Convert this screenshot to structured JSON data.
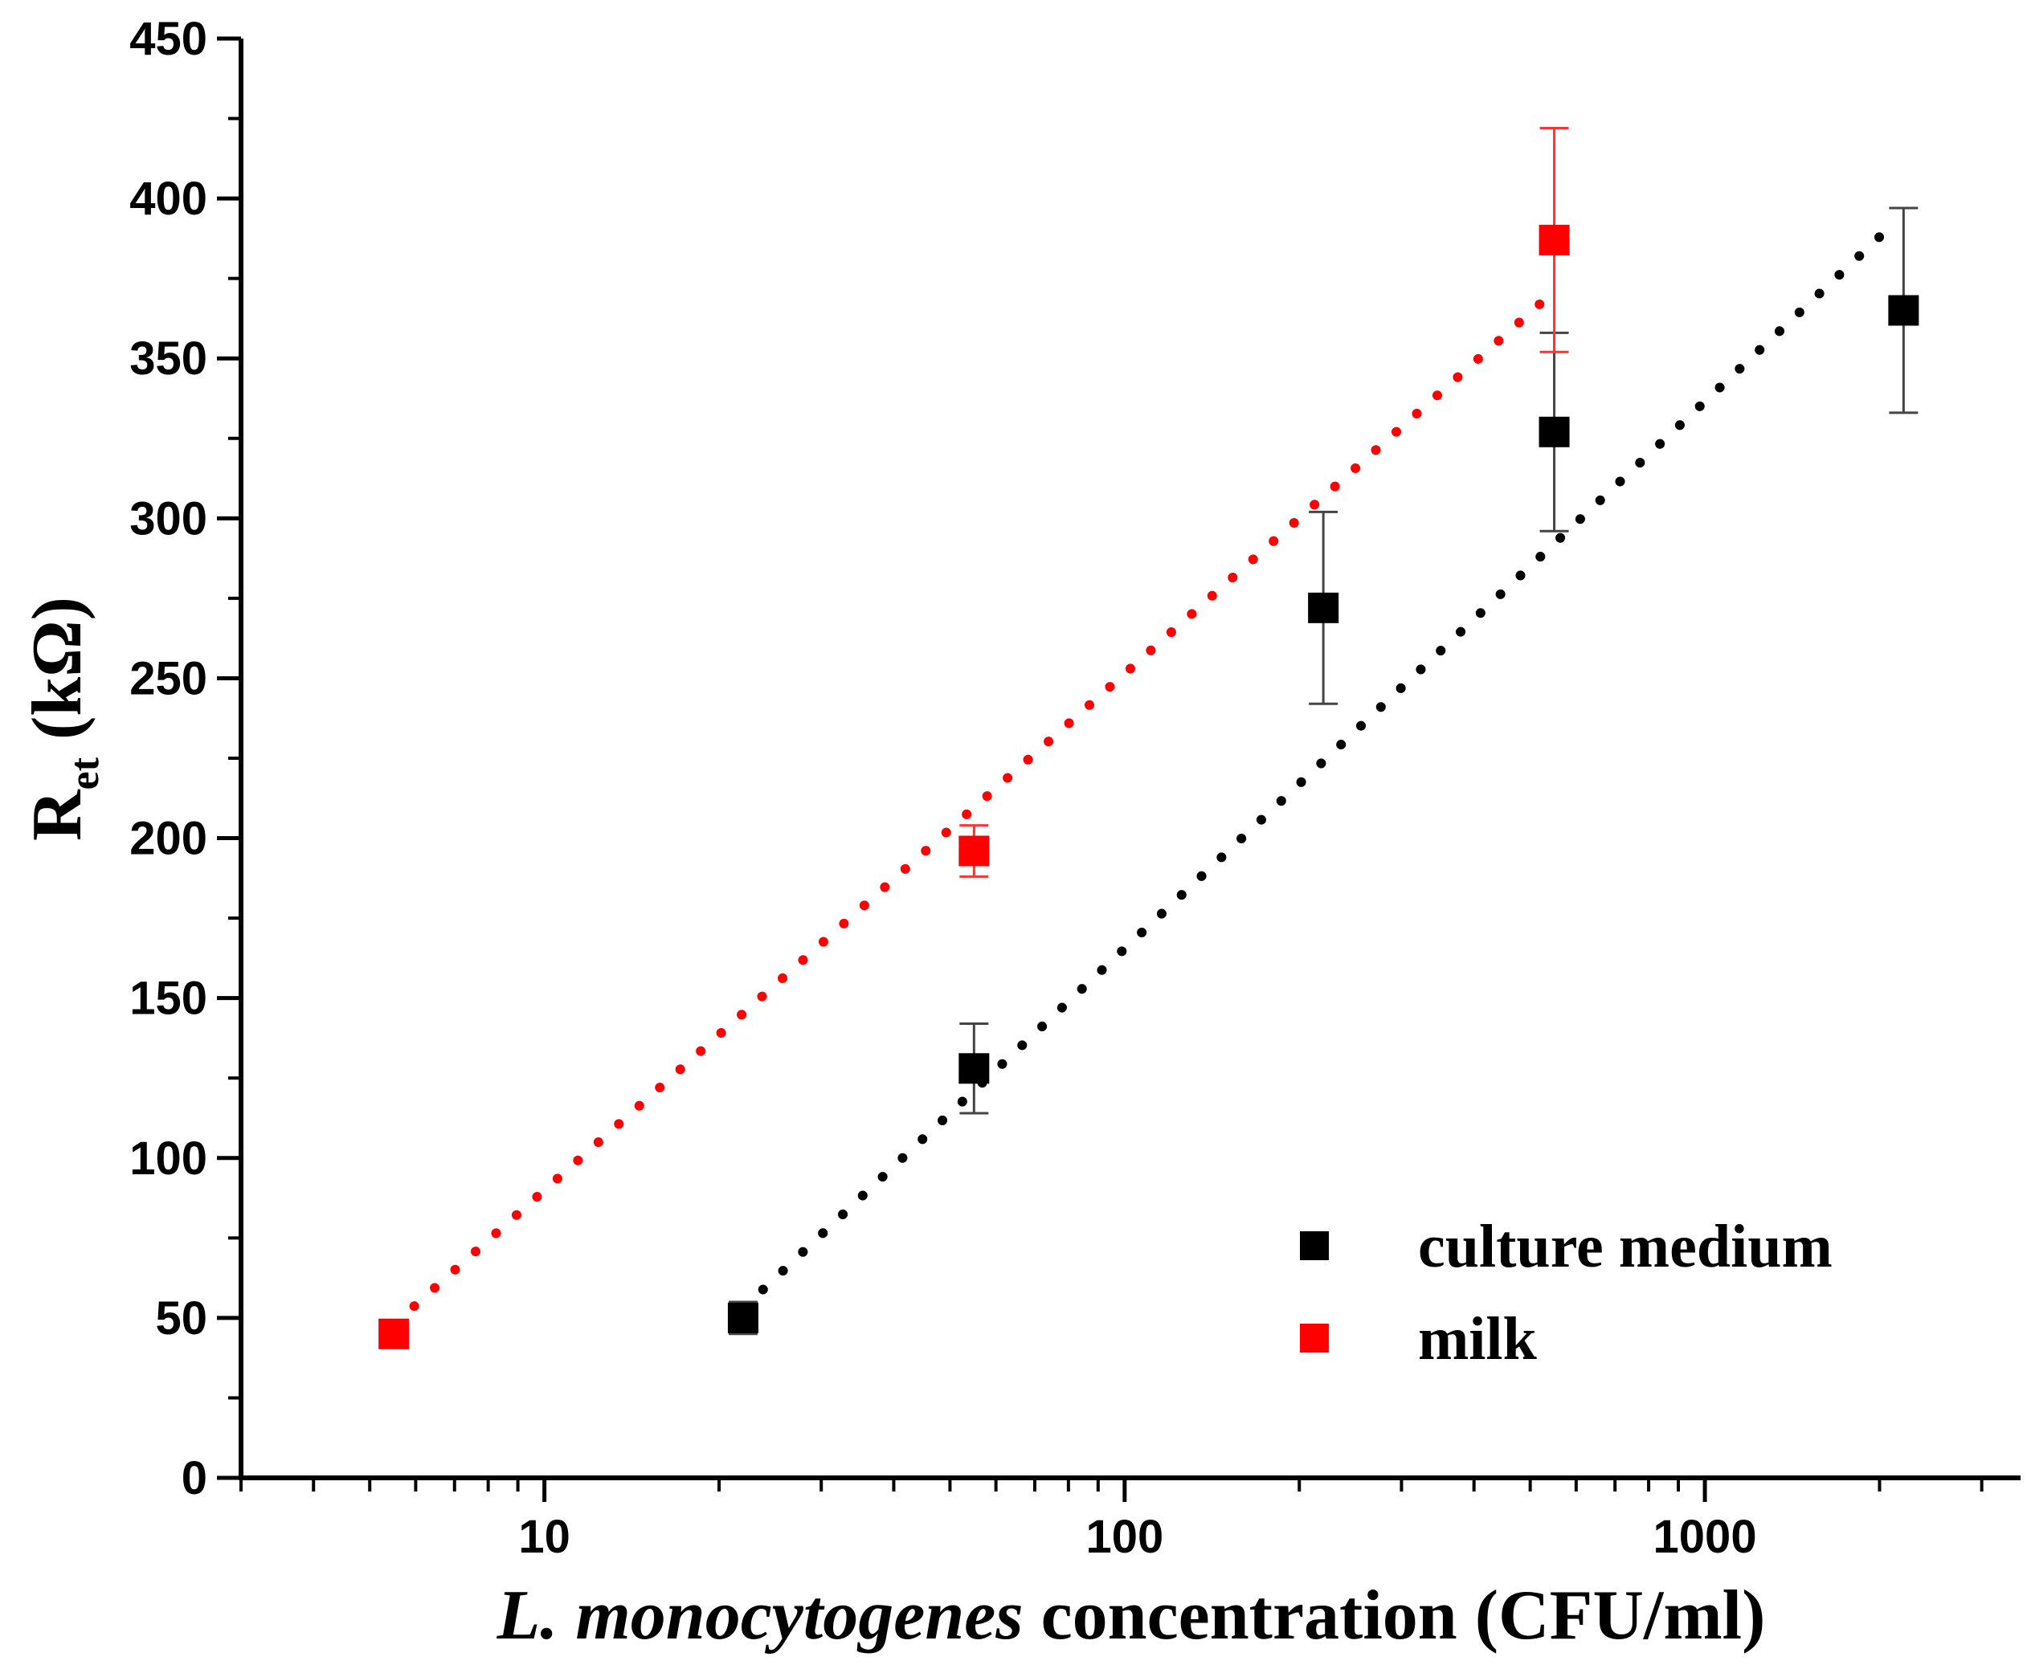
{
  "chart_data": {
    "type": "scatter",
    "title": "",
    "xscale": "log",
    "xlim": [
      3,
      3500
    ],
    "ylim": [
      0,
      450
    ],
    "xticks_major": [
      10,
      100,
      1000
    ],
    "xtick_labels": [
      "10",
      "100",
      "1000"
    ],
    "yticks": [
      0,
      50,
      100,
      150,
      200,
      250,
      300,
      350,
      400,
      450
    ],
    "ytick_labels": [
      "0",
      "50",
      "100",
      "150",
      "200",
      "250",
      "300",
      "350",
      "400",
      "450"
    ],
    "xlabel_italic": "L. monocytogenes",
    "xlabel_rest": " concentration (CFU/ml)",
    "ylabel_main": "R",
    "ylabel_sub": "et",
    "ylabel_unit": " (kΩ)",
    "legend_position": "bottom-right",
    "series": [
      {
        "name": "culture medium",
        "color": "#000000",
        "x": [
          22,
          55,
          220,
          550,
          2200
        ],
        "y": [
          50,
          128,
          272,
          327,
          365
        ],
        "yerr": [
          5,
          14,
          30,
          31,
          32
        ],
        "fit_x": [
          22,
          2000
        ],
        "fit_y": [
          53,
          388
        ]
      },
      {
        "name": "milk",
        "color": "#ff0000",
        "x": [
          5.5,
          55,
          550
        ],
        "y": [
          45,
          196,
          387
        ],
        "yerr": [
          3,
          8,
          35
        ],
        "fit_x": [
          5.5,
          550
        ],
        "fit_y": [
          48,
          371
        ]
      }
    ]
  }
}
